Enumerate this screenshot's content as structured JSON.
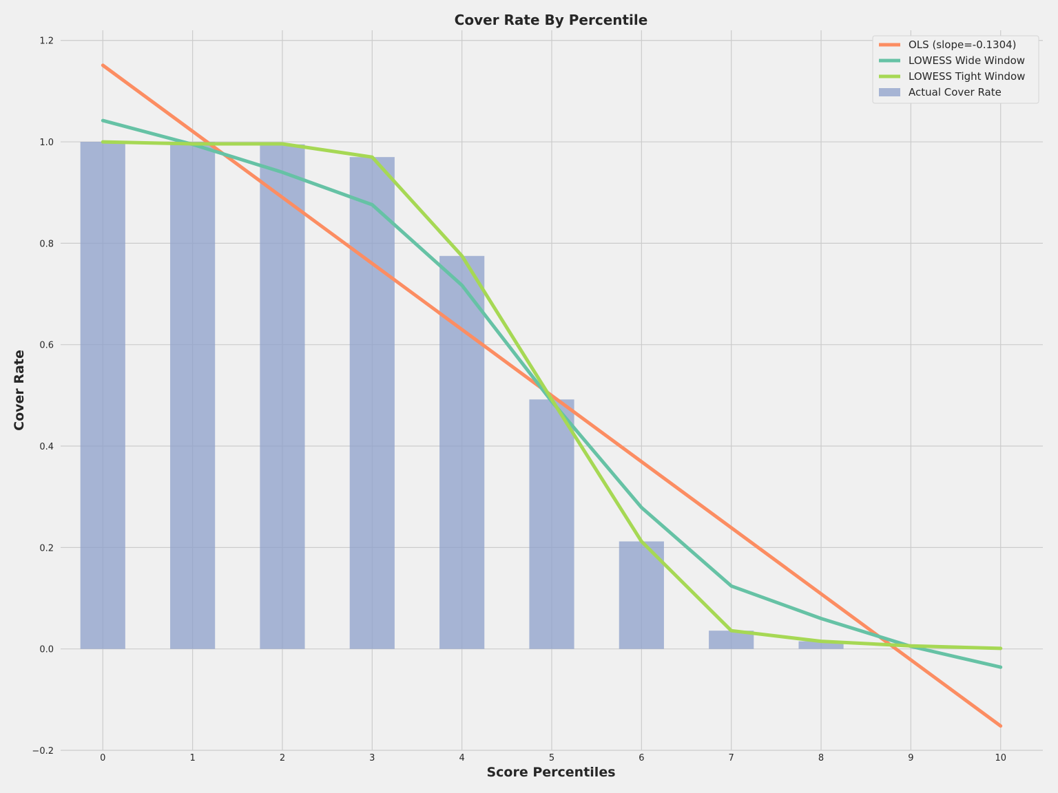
{
  "chart_data": {
    "type": "bar",
    "title": "Cover Rate By Percentile",
    "xlabel": "Score Percentiles",
    "ylabel": "Cover Rate",
    "x": [
      0,
      1,
      2,
      3,
      4,
      5,
      6,
      7,
      8,
      9,
      10
    ],
    "x_tick_labels": [
      "0",
      "1",
      "2",
      "3",
      "4",
      "5",
      "6",
      "7",
      "8",
      "9",
      "10"
    ],
    "y_ticks": [
      -0.2,
      0.0,
      0.2,
      0.4,
      0.6,
      0.8,
      1.0,
      1.2
    ],
    "y_tick_labels": [
      "−0.2",
      "0.0",
      "0.2",
      "0.4",
      "0.6",
      "0.8",
      "1.0",
      "1.2"
    ],
    "xlim": [
      -0.47,
      10.47
    ],
    "ylim": [
      -0.2,
      1.22
    ],
    "grid": true,
    "legend_position": "top-right",
    "bars": {
      "name": "Actual Cover Rate",
      "color": "#8da0cb",
      "x": [
        0,
        1,
        2,
        3,
        4,
        5,
        6,
        7,
        8
      ],
      "values": [
        1.0,
        1.0,
        0.995,
        0.97,
        0.775,
        0.492,
        0.212,
        0.036,
        0.015
      ]
    },
    "series": [
      {
        "name": "OLS (slope=-0.1304)",
        "color": "#fc8d62",
        "x": [
          0,
          10
        ],
        "values": [
          1.151,
          -0.152
        ]
      },
      {
        "name": "LOWESS Wide Window",
        "color": "#66c2a5",
        "x": [
          0,
          1,
          2,
          3,
          4,
          5,
          6,
          7,
          8,
          9,
          10
        ],
        "values": [
          1.042,
          0.995,
          0.94,
          0.876,
          0.717,
          0.488,
          0.279,
          0.124,
          0.06,
          0.005,
          -0.036
        ]
      },
      {
        "name": "LOWESS Tight Window",
        "color": "#a6d854",
        "x": [
          0,
          1,
          2,
          3,
          4,
          5,
          6,
          7,
          8,
          9,
          10
        ],
        "values": [
          1.0,
          0.996,
          0.996,
          0.97,
          0.775,
          0.492,
          0.212,
          0.036,
          0.015,
          0.006,
          0.001
        ]
      }
    ]
  }
}
